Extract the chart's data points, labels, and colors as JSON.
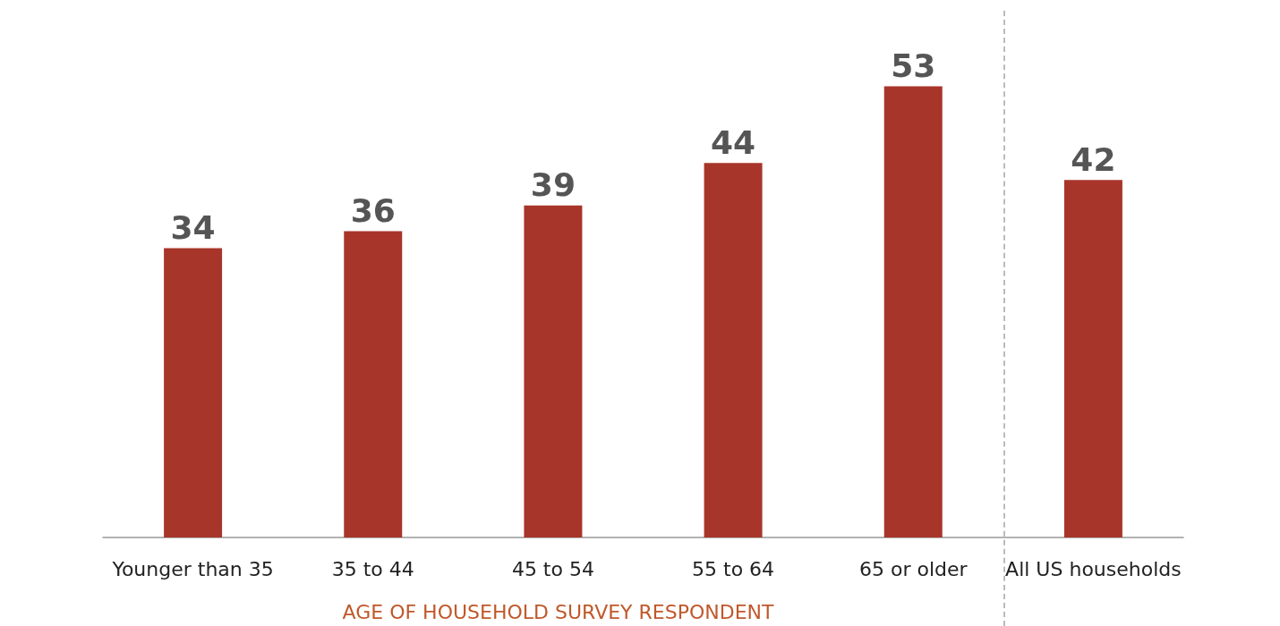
{
  "chart_data": {
    "type": "bar",
    "xlabel": "AGE OF HOUSEHOLD SURVEY RESPONDENT",
    "categories": [
      "Younger than 35",
      "35 to 44",
      "45 to 54",
      "55 to 64",
      "65 or older",
      "All US households"
    ],
    "values": [
      34,
      36,
      39,
      44,
      53,
      42
    ],
    "color": "#a8352a",
    "data_labels": true
  }
}
